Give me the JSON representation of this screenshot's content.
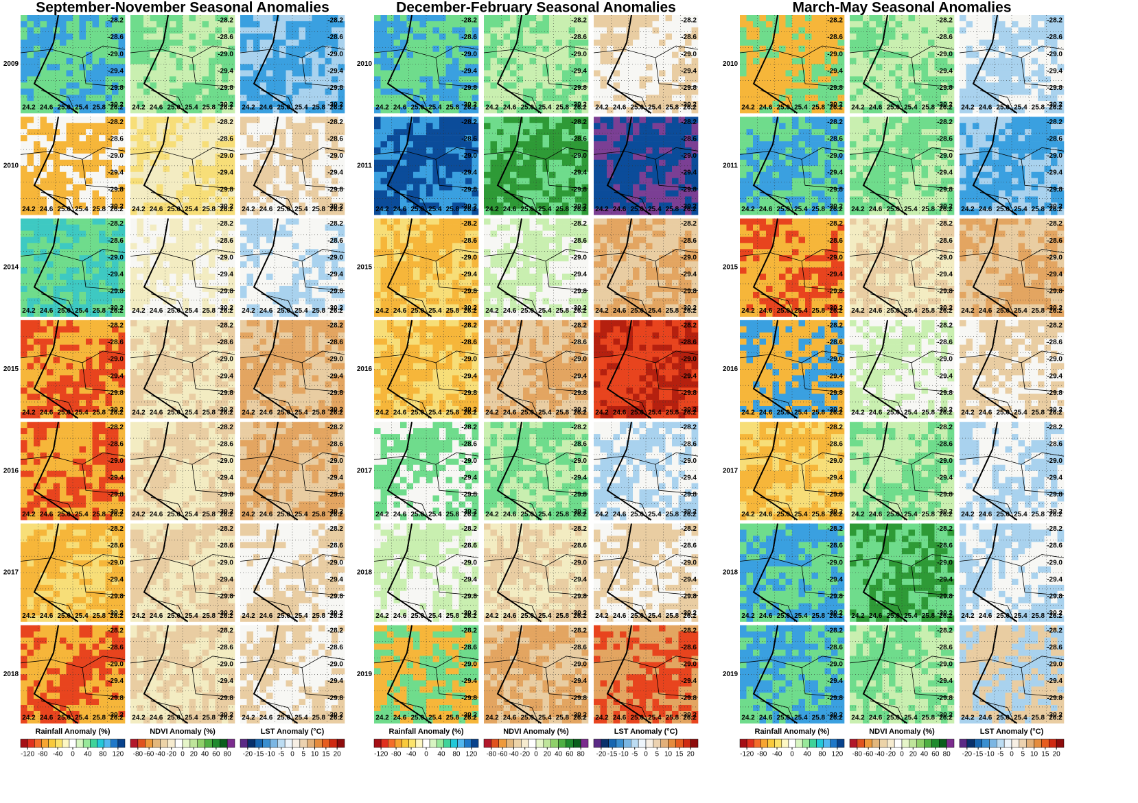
{
  "columns": [
    {
      "title": "September-November Seasonal Anomalies",
      "years": [
        "2009",
        "2010",
        "2014",
        "2015",
        "2016",
        "2017",
        "2018"
      ]
    },
    {
      "title": "December-February Seasonal Anomalies",
      "years": [
        "2010",
        "2011",
        "2015",
        "2016",
        "2017",
        "2018",
        "2019"
      ]
    },
    {
      "title": "March-May Seasonal Anomalies",
      "years": [
        "2010",
        "2011",
        "2015",
        "2016",
        "2017",
        "2018",
        "2019"
      ]
    }
  ],
  "lon_labels": [
    "24.2",
    "24.6",
    "25.0",
    "25.4",
    "25.8",
    "26.2"
  ],
  "lat_labels": [
    "-28.2",
    "-28.6",
    "-29.0",
    "-29.4",
    "-29.8",
    "-30.2"
  ],
  "colorbars": [
    {
      "title": "Rainfall Anomaly (%)",
      "ticks": [
        -120,
        -80,
        -40,
        0,
        40,
        80,
        120
      ],
      "colors": [
        "#a50f15",
        "#e0301e",
        "#f46d2a",
        "#f7a531",
        "#f9c93c",
        "#fbe36b",
        "#fdf7c3",
        "#ffffff",
        "#d8f5c2",
        "#98e89a",
        "#3fd39a",
        "#23c8d8",
        "#52b7ef",
        "#1f78c8",
        "#08428c"
      ]
    },
    {
      "title": "NDVI Anomaly (%)",
      "ticks": [
        -80,
        -60,
        -40,
        -20,
        0,
        20,
        40,
        60,
        80
      ],
      "colors": [
        "#b2182b",
        "#e0531f",
        "#ee9a3c",
        "#e3b77c",
        "#ecd3a8",
        "#f6ebcf",
        "#ffffff",
        "#e6f5c9",
        "#bfe59b",
        "#8fd06a",
        "#4fb043",
        "#1f8a2e",
        "#0a5e1c",
        "#7b2c8e"
      ]
    },
    {
      "title": "LST Anomaly (°C)",
      "ticks": [
        -20,
        -15,
        -10,
        -5,
        0,
        5,
        10,
        15,
        20
      ],
      "colors": [
        "#5b2a86",
        "#08306b",
        "#1766b0",
        "#3a8fd0",
        "#7bb6e3",
        "#bcdcf2",
        "#eef5fb",
        "#f7efe4",
        "#ecd2b0",
        "#e2b07a",
        "#e58c3e",
        "#e65d1f",
        "#cf2a12",
        "#8e0c0c"
      ]
    }
  ]
}
